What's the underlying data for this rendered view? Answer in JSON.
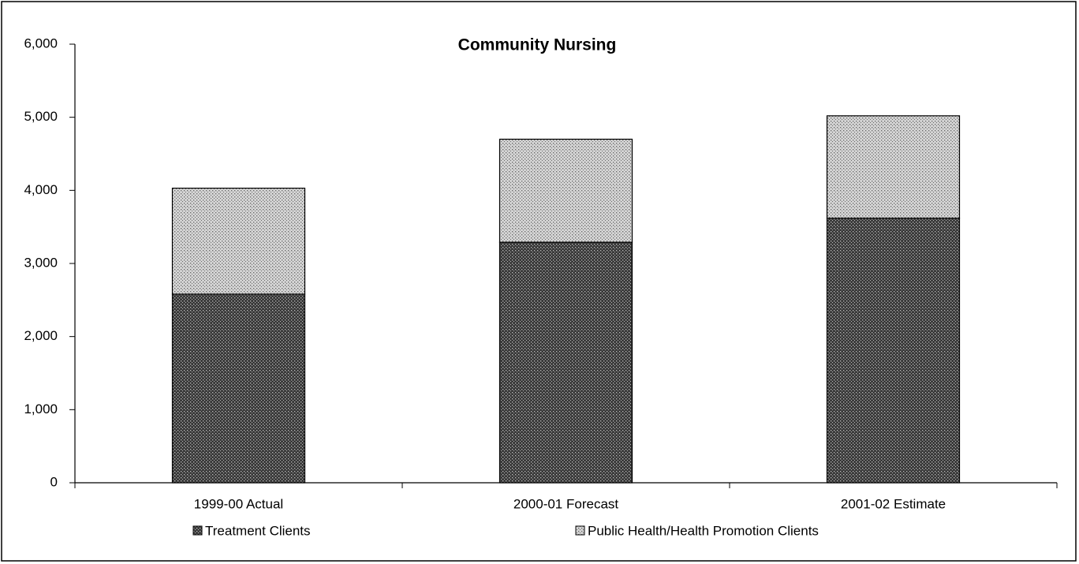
{
  "chart_data": {
    "type": "stacked_bar",
    "title": "Community Nursing",
    "categories": [
      "1999-00 Actual",
      "2000-01 Forecast",
      "2001-02 Estimate"
    ],
    "series": [
      {
        "name": "Treatment Clients",
        "color": "#3a3a3a",
        "values": [
          2580,
          3290,
          3620
        ]
      },
      {
        "name": "Public Health/Health Promotion Clients",
        "color": "#d4d4d4",
        "values": [
          1450,
          1410,
          1400
        ]
      }
    ],
    "ylim": [
      0,
      6000
    ],
    "yticks": [
      0,
      {
        "value": 1000,
        "label": "1,000"
      },
      {
        "value": 2000,
        "label": "2,000"
      },
      {
        "value": 3000,
        "label": "3,000"
      },
      {
        "value": 4000,
        "label": "4,000"
      },
      {
        "value": 5000,
        "label": "5,000"
      },
      {
        "value": 6000,
        "label": "6,000"
      }
    ],
    "grid": false
  }
}
